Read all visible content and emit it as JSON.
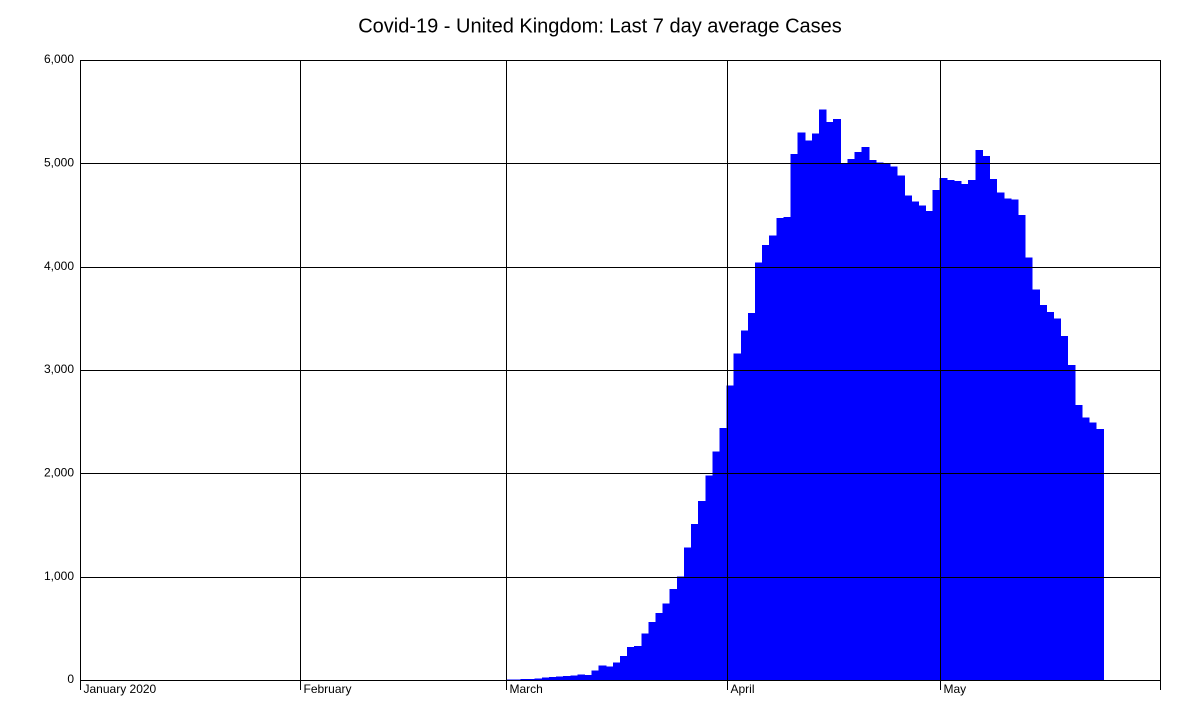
{
  "chart_data": {
    "type": "bar",
    "title": "Covid-19 - United Kingdom: Last 7 day average Cases",
    "x": [
      60,
      61,
      62,
      63,
      64,
      65,
      66,
      67,
      68,
      69,
      70,
      71,
      72,
      73,
      74,
      75,
      76,
      77,
      78,
      79,
      80,
      81,
      82,
      83,
      84,
      85,
      86,
      87,
      88,
      89,
      90,
      91,
      92,
      93,
      94,
      95,
      96,
      97,
      98,
      99,
      100,
      101,
      102,
      103,
      104,
      105,
      106,
      107,
      108,
      109,
      110,
      111,
      112,
      113,
      114,
      115,
      116,
      117,
      118,
      119,
      120,
      121,
      122,
      123,
      124,
      125,
      126,
      127,
      128,
      129,
      130,
      131,
      132,
      133,
      134,
      135,
      136,
      137,
      138,
      139,
      140,
      141,
      142,
      143
    ],
    "values": [
      3,
      4,
      8,
      12,
      16,
      22,
      28,
      33,
      38,
      45,
      52,
      50,
      90,
      140,
      130,
      170,
      230,
      320,
      330,
      450,
      560,
      650,
      740,
      880,
      1000,
      1280,
      1510,
      1730,
      1980,
      2210,
      2440,
      2850,
      3160,
      3380,
      3550,
      4040,
      4210,
      4300,
      4470,
      4480,
      5090,
      5300,
      5220,
      5290,
      5520,
      5400,
      5430,
      5000,
      5040,
      5110,
      5160,
      5030,
      5010,
      5000,
      4970,
      4880,
      4690,
      4630,
      4590,
      4540,
      4740,
      4860,
      4840,
      4830,
      4800,
      4840,
      5130,
      5070,
      4850,
      4720,
      4660,
      4650,
      4500,
      4090,
      3780,
      3630,
      3560,
      3500,
      3330,
      3050,
      2660,
      2540,
      2490,
      2430
    ],
    "color": "#0000ff",
    "xlim": [
      0,
      152
    ],
    "xticks": [
      {
        "value": 0,
        "label": "January 2020"
      },
      {
        "value": 31,
        "label": "February"
      },
      {
        "value": 60,
        "label": "March"
      },
      {
        "value": 91,
        "label": "April"
      },
      {
        "value": 121,
        "label": "May"
      }
    ],
    "ylim": [
      0,
      6000
    ],
    "yticks": [
      0,
      {
        "value": 1000,
        "label": "1,000"
      },
      {
        "value": 2000,
        "label": "2,000"
      },
      {
        "value": 3000,
        "label": "3,000"
      },
      {
        "value": 4000,
        "label": "4,000"
      },
      {
        "value": 5000,
        "label": "5,000"
      },
      {
        "value": 6000,
        "label": "6,000"
      }
    ],
    "grid": true
  }
}
